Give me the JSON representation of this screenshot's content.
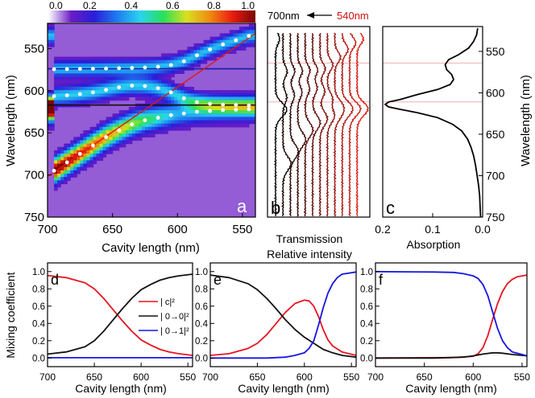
{
  "colorbar": {
    "ticks": [
      "0.0",
      "0.2",
      "0.4",
      "0.6",
      "0.8",
      "1.0"
    ],
    "stops": [
      "#ffffff",
      "#6a1cc4",
      "#2a1ed8",
      "#1e7cf0",
      "#2ad4f0",
      "#28e05a",
      "#d8e020",
      "#f08c10",
      "#e81c10",
      "#7a0606"
    ]
  },
  "wavelength_arrow": {
    "from_label": "700nm",
    "to_label": "540nm",
    "to_color": "#d01010"
  },
  "chart_data": [
    {
      "panel": "a",
      "type": "heatmap",
      "xlabel": "Cavity length (nm)",
      "ylabel": "Wavelength (nm)",
      "xlim": [
        700,
        540
      ],
      "ylim": [
        520,
        750
      ],
      "xticks": [
        "700",
        "650",
        "600",
        "550"
      ],
      "yticks": [
        "550",
        "600",
        "650",
        "700",
        "750"
      ],
      "horizontal_lines": [
        {
          "y": 574,
          "color": "#1a1aa8"
        },
        {
          "y": 617,
          "color": "#111111"
        }
      ],
      "diagonal_line": {
        "x": [
          700,
          540
        ],
        "y": [
          702,
          532
        ],
        "color": "#e01a10"
      },
      "dots": {
        "upper": {
          "x": [
            695,
            685,
            675,
            665,
            655,
            645,
            635,
            625,
            615,
            605,
            595,
            585,
            575,
            565,
            555,
            545
          ],
          "y": [
            574.5,
            574.3,
            574.1,
            573.9,
            573.6,
            573.3,
            573.0,
            572.5,
            571.5,
            569.5,
            565.0,
            558.0,
            551.0,
            545.0,
            540.0,
            535.0
          ]
        },
        "middle": {
          "x": [
            695,
            685,
            675,
            665,
            655,
            645,
            635,
            625,
            615,
            605,
            595,
            585,
            575,
            565,
            555,
            545
          ],
          "y": [
            606.5,
            605.5,
            604.0,
            602.0,
            599.0,
            596.0,
            594.0,
            594.5,
            597.0,
            602.0,
            609.0,
            613.5,
            615.5,
            616.5,
            617.0,
            617.5
          ]
        },
        "lower": {
          "x": [
            695,
            685,
            675,
            665,
            655,
            645,
            635,
            625,
            615,
            605,
            595,
            585,
            575,
            565,
            555,
            545
          ],
          "y": [
            695.0,
            685.0,
            675.0,
            665.0,
            655.0,
            647.0,
            640.0,
            635.0,
            632.0,
            629.0,
            627.0,
            625.0,
            624.0,
            623.0,
            622.5,
            622.0
          ]
        }
      }
    },
    {
      "panel": "b",
      "type": "line",
      "xlabel": "Transmission",
      "xlabel2": "Relative intensity",
      "ylim": [
        520,
        750
      ],
      "curve_count": 12,
      "color_start": "#000000",
      "color_end": "#d81a10",
      "guide_lines": [
        564,
        611
      ]
    },
    {
      "panel": "c",
      "type": "line",
      "xlabel": "Absorption",
      "ylabel": "Wavelength (nm)",
      "xlim": [
        0.2,
        0.0
      ],
      "ylim": [
        520,
        750
      ],
      "xticks": [
        "0.2",
        "0.1",
        "0.0"
      ],
      "yticks": [
        "550",
        "600",
        "650",
        "700",
        "750"
      ],
      "guide_lines": [
        564,
        611
      ],
      "x": [
        0.01,
        0.012,
        0.018,
        0.028,
        0.048,
        0.068,
        0.075,
        0.072,
        0.062,
        0.058,
        0.065,
        0.09,
        0.13,
        0.165,
        0.188,
        0.195,
        0.188,
        0.165,
        0.13,
        0.09,
        0.06,
        0.042,
        0.03,
        0.023,
        0.018,
        0.014,
        0.011,
        0.008,
        0.006,
        0.005,
        0.004
      ],
      "y": [
        522,
        530,
        538,
        546,
        554,
        560,
        566,
        572,
        578,
        584,
        590,
        596,
        602,
        608,
        611,
        614,
        617,
        620,
        624,
        630,
        638,
        646,
        656,
        666,
        676,
        688,
        700,
        712,
        724,
        738,
        750
      ]
    },
    {
      "panel": "d",
      "type": "line",
      "xlabel": "Cavity length (nm)",
      "ylabel": "Mixing coefficient",
      "xlim": [
        700,
        545
      ],
      "ylim": [
        -0.1,
        1.1
      ],
      "xticks": [
        "700",
        "650",
        "600",
        "550"
      ],
      "yticks": [
        "0.0",
        "0.2",
        "0.4",
        "0.6",
        "0.8",
        "1.0"
      ],
      "legend": [
        "|  c|²",
        "|  0→0|²",
        "|  0→1|²"
      ],
      "series": [
        {
          "color": "#e8141e",
          "x": [
            700,
            680,
            660,
            650,
            640,
            630,
            620,
            610,
            600,
            590,
            580,
            570,
            560,
            545
          ],
          "y": [
            0.955,
            0.93,
            0.87,
            0.8,
            0.69,
            0.56,
            0.43,
            0.31,
            0.21,
            0.15,
            0.1,
            0.07,
            0.05,
            0.03
          ]
        },
        {
          "color": "#111111",
          "x": [
            700,
            680,
            660,
            650,
            640,
            630,
            620,
            610,
            600,
            590,
            580,
            570,
            560,
            545
          ],
          "y": [
            0.045,
            0.07,
            0.13,
            0.2,
            0.31,
            0.44,
            0.57,
            0.69,
            0.79,
            0.85,
            0.9,
            0.93,
            0.95,
            0.97
          ]
        },
        {
          "color": "#1616e0",
          "x": [
            700,
            545
          ],
          "y": [
            0.003,
            0.003
          ]
        }
      ]
    },
    {
      "panel": "e",
      "type": "line",
      "xlabel": "Cavity length (nm)",
      "xlim": [
        700,
        545
      ],
      "ylim": [
        -0.1,
        1.1
      ],
      "xticks": [
        "700",
        "650",
        "600",
        "550"
      ],
      "yticks": [
        "0.0",
        "0.2",
        "0.4",
        "0.6",
        "0.8",
        "1.0"
      ],
      "series": [
        {
          "color": "#e8141e",
          "x": [
            700,
            680,
            660,
            650,
            640,
            630,
            620,
            610,
            600,
            595,
            590,
            585,
            580,
            575,
            570,
            560,
            545
          ],
          "y": [
            0.03,
            0.05,
            0.11,
            0.17,
            0.27,
            0.4,
            0.53,
            0.63,
            0.67,
            0.66,
            0.6,
            0.48,
            0.33,
            0.21,
            0.14,
            0.07,
            0.03
          ]
        },
        {
          "color": "#111111",
          "x": [
            700,
            680,
            660,
            650,
            640,
            630,
            620,
            610,
            600,
            590,
            580,
            570,
            560,
            545
          ],
          "y": [
            0.96,
            0.93,
            0.86,
            0.79,
            0.69,
            0.57,
            0.44,
            0.33,
            0.24,
            0.17,
            0.1,
            0.06,
            0.03,
            0.01
          ]
        },
        {
          "color": "#1616e0",
          "x": [
            700,
            640,
            620,
            610,
            600,
            595,
            590,
            585,
            580,
            575,
            570,
            565,
            560,
            545
          ],
          "y": [
            0.0,
            0.0,
            0.01,
            0.03,
            0.06,
            0.11,
            0.2,
            0.38,
            0.58,
            0.75,
            0.86,
            0.93,
            0.97,
            0.995
          ]
        }
      ]
    },
    {
      "panel": "f",
      "type": "line",
      "xlabel": "Cavity length (nm)",
      "xlim": [
        700,
        545
      ],
      "ylim": [
        -0.1,
        1.1
      ],
      "xticks": [
        "700",
        "650",
        "600",
        "550"
      ],
      "yticks": [
        "0.0",
        "0.2",
        "0.4",
        "0.6",
        "0.8",
        "1.0"
      ],
      "series": [
        {
          "color": "#e8141e",
          "x": [
            700,
            620,
            600,
            595,
            590,
            585,
            580,
            575,
            570,
            565,
            560,
            555,
            545
          ],
          "y": [
            0.0,
            0.005,
            0.02,
            0.05,
            0.12,
            0.26,
            0.45,
            0.63,
            0.77,
            0.86,
            0.91,
            0.94,
            0.96
          ]
        },
        {
          "color": "#111111",
          "x": [
            700,
            640,
            610,
            600,
            590,
            580,
            575,
            570,
            560,
            550,
            545
          ],
          "y": [
            0.0,
            0.0,
            0.01,
            0.025,
            0.045,
            0.06,
            0.06,
            0.055,
            0.04,
            0.03,
            0.025
          ]
        },
        {
          "color": "#1616e0",
          "x": [
            700,
            640,
            620,
            610,
            600,
            595,
            590,
            585,
            580,
            575,
            570,
            565,
            560,
            550,
            545
          ],
          "y": [
            1.0,
            0.995,
            0.99,
            0.975,
            0.95,
            0.92,
            0.85,
            0.72,
            0.53,
            0.34,
            0.2,
            0.12,
            0.07,
            0.04,
            0.025
          ]
        }
      ]
    }
  ]
}
